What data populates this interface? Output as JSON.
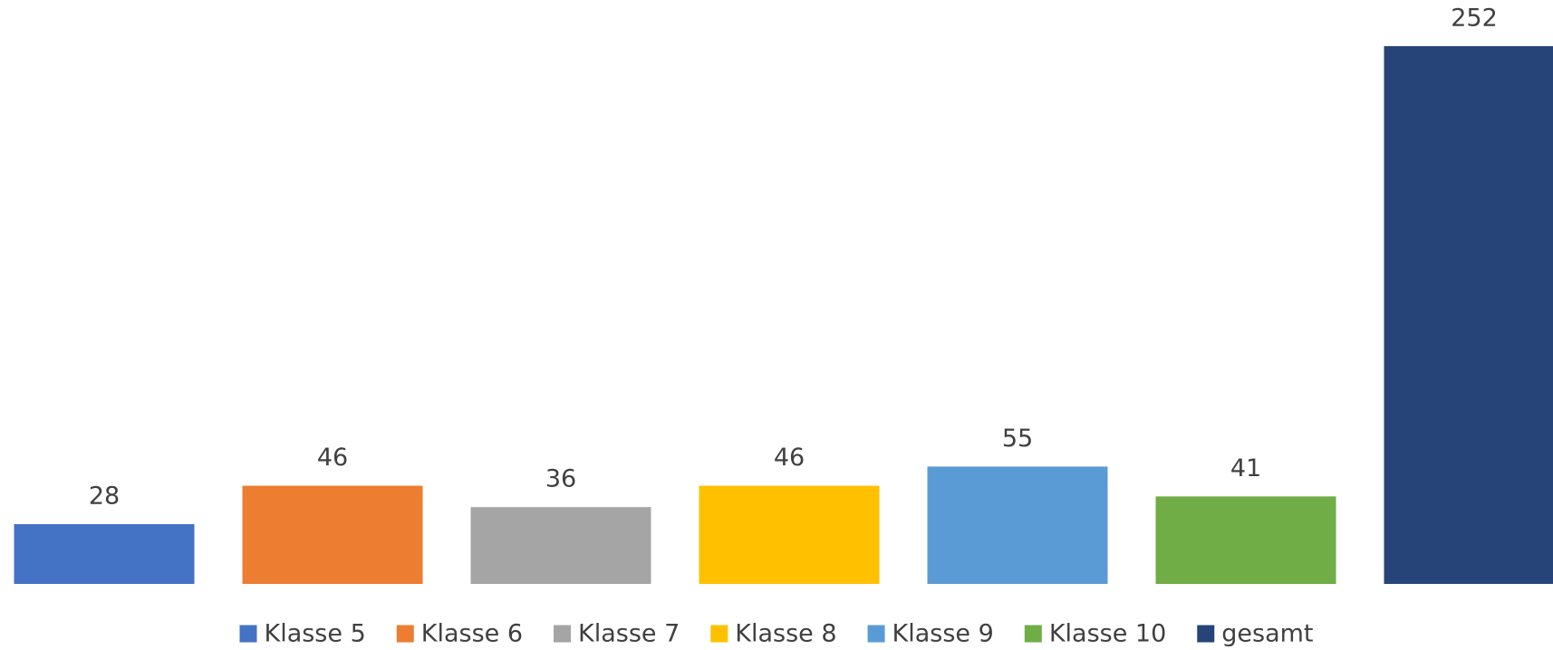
{
  "chart_data": {
    "type": "bar",
    "series": [
      {
        "name": "Klasse 5",
        "color": "#4472c4",
        "values": [
          28
        ]
      },
      {
        "name": "Klasse 6",
        "color": "#ed7d31",
        "values": [
          46
        ]
      },
      {
        "name": "Klasse 7",
        "color": "#a5a5a5",
        "values": [
          36
        ]
      },
      {
        "name": "Klasse 8",
        "color": "#ffc000",
        "values": [
          46
        ]
      },
      {
        "name": "Klasse 9",
        "color": "#5b9bd5",
        "values": [
          55
        ]
      },
      {
        "name": "Klasse 10",
        "color": "#70ad47",
        "values": [
          41
        ]
      },
      {
        "name": "gesamt",
        "color": "#264478",
        "values": [
          252
        ]
      }
    ],
    "legend": "bottom"
  }
}
